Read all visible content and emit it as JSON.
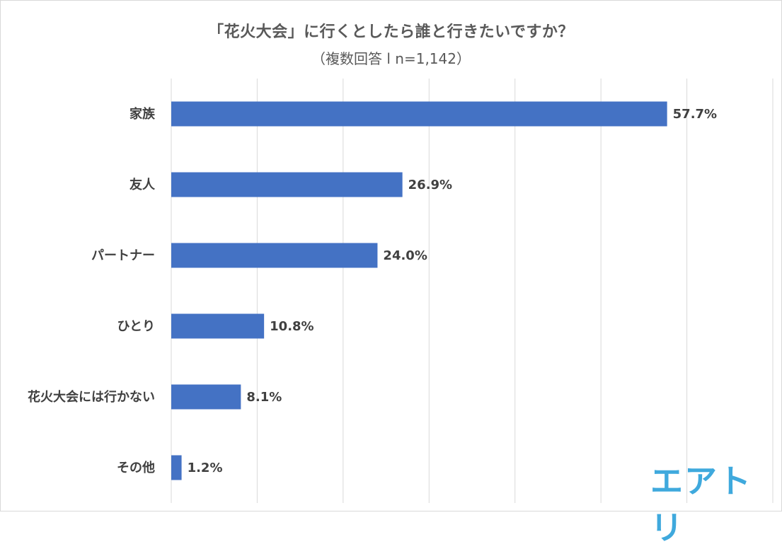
{
  "chart_data": {
    "type": "bar",
    "orientation": "horizontal",
    "title": "「花火大会」に行くとしたら誰と行きたいですか？",
    "subtitle": "（複数回答 l n=1,142）",
    "categories": [
      "家族",
      "友人",
      "パートナー",
      "ひとり",
      "花火大会には行かない",
      "その他"
    ],
    "values": [
      57.7,
      26.9,
      24.0,
      10.8,
      8.1,
      1.2
    ],
    "value_labels": [
      "57.7%",
      "26.9%",
      "24.0%",
      "10.8%",
      "8.1%",
      "1.2%"
    ],
    "xlim": [
      0,
      70
    ],
    "grid": true,
    "bar_color": "#4472c4"
  },
  "logo": {
    "text": "エアトリ",
    "color": "#3fa9dd"
  }
}
